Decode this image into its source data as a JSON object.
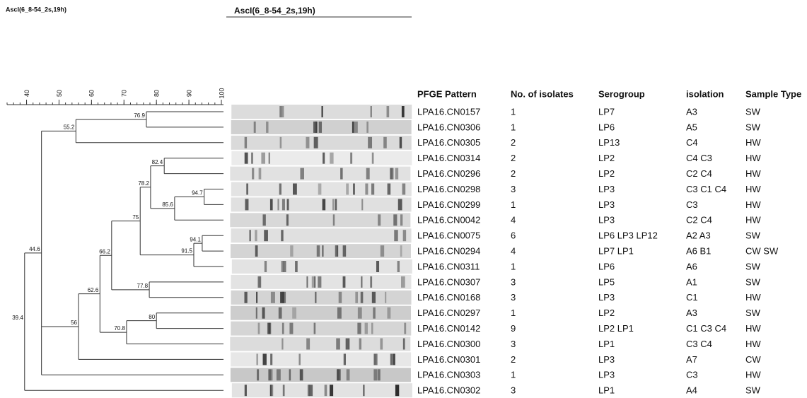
{
  "header": {
    "corner_title": "AscI(6_8-54_2s,19h)",
    "gel_title": "AscI(6_8-54_2s,19h)"
  },
  "scale": {
    "xlim": [
      34,
      100
    ],
    "xticks": [
      40,
      50,
      60,
      70,
      80,
      90,
      100
    ]
  },
  "tree": {
    "value": 39.4,
    "children": [
      {
        "value": 44.6,
        "children": [
          {
            "value": 55.2,
            "children": [
              {
                "value": 76.9,
                "children": [
                  0,
                  1
                ]
              },
              2
            ]
          },
          {
            "value": 56.0,
            "children": [
              {
                "value": 62.6,
                "children": [
                  {
                    "value": 66.2,
                    "children": [
                      {
                        "value": 75.0,
                        "children": [
                          {
                            "value": 78.2,
                            "children": [
                              {
                                "value": 82.4,
                                "children": [
                                  3,
                                  4
                                ]
                              },
                              {
                                "value": 85.6,
                                "children": [
                                  {
                                    "value": 94.7,
                                    "children": [
                                      5,
                                      6
                                    ]
                                  },
                                  7
                                ]
                              }
                            ]
                          },
                          {
                            "value": 91.5,
                            "children": [
                              {
                                "value": 94.1,
                                "children": [
                                  8,
                                  9
                                ]
                              },
                              10
                            ]
                          }
                        ]
                      },
                      {
                        "value": 77.8,
                        "children": [
                          11,
                          12
                        ]
                      }
                    ]
                  },
                  {
                    "value": 70.8,
                    "children": [
                      {
                        "value": 80.0,
                        "children": [
                          13,
                          14
                        ]
                      },
                      15
                    ]
                  }
                ]
              },
              16
            ]
          },
          17
        ]
      },
      18
    ]
  },
  "table": {
    "columns": [
      "PFGE Pattern",
      "No. of isolates",
      "Serogroup",
      "isolation",
      "Sample Type"
    ],
    "rows": [
      [
        "LPA16.CN0157",
        "1",
        "LP7",
        "A3",
        "SW"
      ],
      [
        "LPA16.CN0306",
        "1",
        "LP6",
        "A5",
        "SW"
      ],
      [
        "LPA16.CN0305",
        "2",
        "LP13",
        "C4",
        "HW"
      ],
      [
        "LPA16.CN0314",
        "2",
        "LP2",
        "C4 C3",
        "HW"
      ],
      [
        "LPA16.CN0296",
        "2",
        "LP2",
        "C2 C4",
        "HW"
      ],
      [
        "LPA16.CN0298",
        "3",
        "LP3",
        "C3 C1 C4",
        "HW"
      ],
      [
        "LPA16.CN0299",
        "1",
        "LP3",
        "C3",
        "HW"
      ],
      [
        "LPA16.CN0042",
        "4",
        "LP3",
        "C2 C4",
        "HW"
      ],
      [
        "LPA16.CN0075",
        "6",
        "LP6 LP3 LP12",
        "A2 A3",
        "SW"
      ],
      [
        "LPA16.CN0294",
        "4",
        "LP7 LP1",
        "A6 B1",
        "CW SW"
      ],
      [
        "LPA16.CN0311",
        "1",
        "LP6",
        "A6",
        "SW"
      ],
      [
        "LPA16.CN0307",
        "3",
        "LP5",
        "A1",
        "SW"
      ],
      [
        "LPA16.CN0168",
        "3",
        "LP3",
        "C1",
        "HW"
      ],
      [
        "LPA16.CN0297",
        "1",
        "LP2",
        "A3",
        "SW"
      ],
      [
        "LPA16.CN0142",
        "9",
        "LP2 LP1",
        "C1 C3 C4",
        "HW"
      ],
      [
        "LPA16.CN0300",
        "3",
        "LP1",
        "C3 C4",
        "HW"
      ],
      [
        "LPA16.CN0301",
        "2",
        "LP3",
        "A7",
        "CW"
      ],
      [
        "LPA16.CN0303",
        "1",
        "LP3",
        "C3",
        "HW"
      ],
      [
        "LPA16.CN0302",
        "3",
        "LP1",
        "A4",
        "SW"
      ]
    ]
  }
}
